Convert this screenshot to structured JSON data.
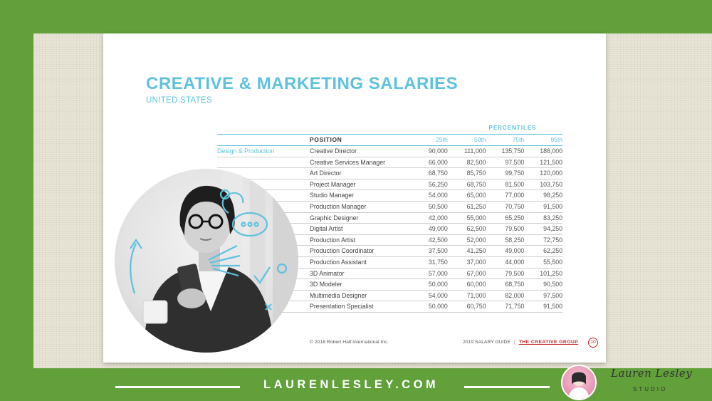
{
  "slide": {
    "title": "CREATIVE & MARKETING SALARIES",
    "subtitle": "UNITED STATES",
    "percentiles_label": "PERCENTILES",
    "table": {
      "position_header": "POSITION",
      "percentile_headers": [
        "25th",
        "50th",
        "75th",
        "95th"
      ],
      "category": "Design & Production",
      "rows": [
        {
          "position": "Creative Director",
          "values": [
            "90,000",
            "111,000",
            "135,750",
            "186,000"
          ]
        },
        {
          "position": "Creative Services Manager",
          "values": [
            "66,000",
            "82,500",
            "97,500",
            "121,500"
          ]
        },
        {
          "position": "Art Director",
          "values": [
            "68,750",
            "85,750",
            "99,750",
            "120,000"
          ]
        },
        {
          "position": "Project Manager",
          "values": [
            "56,250",
            "68,750",
            "81,500",
            "103,750"
          ]
        },
        {
          "position": "Studio Manager",
          "values": [
            "54,000",
            "65,000",
            "77,000",
            "98,250"
          ]
        },
        {
          "position": "Production Manager",
          "values": [
            "50,500",
            "61,250",
            "70,750",
            "91,500"
          ]
        },
        {
          "position": "Graphic Designer",
          "values": [
            "42,000",
            "55,000",
            "65,250",
            "83,250"
          ]
        },
        {
          "position": "Digital Artist",
          "values": [
            "49,000",
            "62,500",
            "79,500",
            "94,250"
          ]
        },
        {
          "position": "Production Artist",
          "values": [
            "42,500",
            "52,000",
            "58,250",
            "72,750"
          ]
        },
        {
          "position": "Production Coordinator",
          "values": [
            "37,500",
            "41,250",
            "49,000",
            "62,250"
          ]
        },
        {
          "position": "Production Assistant",
          "values": [
            "31,750",
            "37,000",
            "44,000",
            "55,500"
          ]
        },
        {
          "position": "3D Animator",
          "values": [
            "57,000",
            "67,000",
            "79,500",
            "101,250"
          ]
        },
        {
          "position": "3D Modeler",
          "values": [
            "50,000",
            "60,000",
            "68,750",
            "90,500"
          ]
        },
        {
          "position": "Multimedia Designer",
          "values": [
            "54,000",
            "71,000",
            "82,000",
            "97,500"
          ]
        },
        {
          "position": "Presentation Specialist",
          "values": [
            "50,000",
            "60,750",
            "71,750",
            "91,500"
          ]
        }
      ]
    },
    "footer": {
      "copyright": "© 2018 Robert Half International Inc.",
      "guide": "2019 SALARY GUIDE",
      "separator": "|",
      "brand": "THE CREATIVE GROUP",
      "page_number": "10"
    }
  },
  "banner": {
    "website": "LAURENLESLEY.COM",
    "logo_script": "Lauren Lesley",
    "logo_studio": "STUDIO"
  },
  "colors": {
    "background_green": "#62a03a",
    "accent_cyan": "#5ec2dd",
    "brand_red": "#c8262c"
  }
}
